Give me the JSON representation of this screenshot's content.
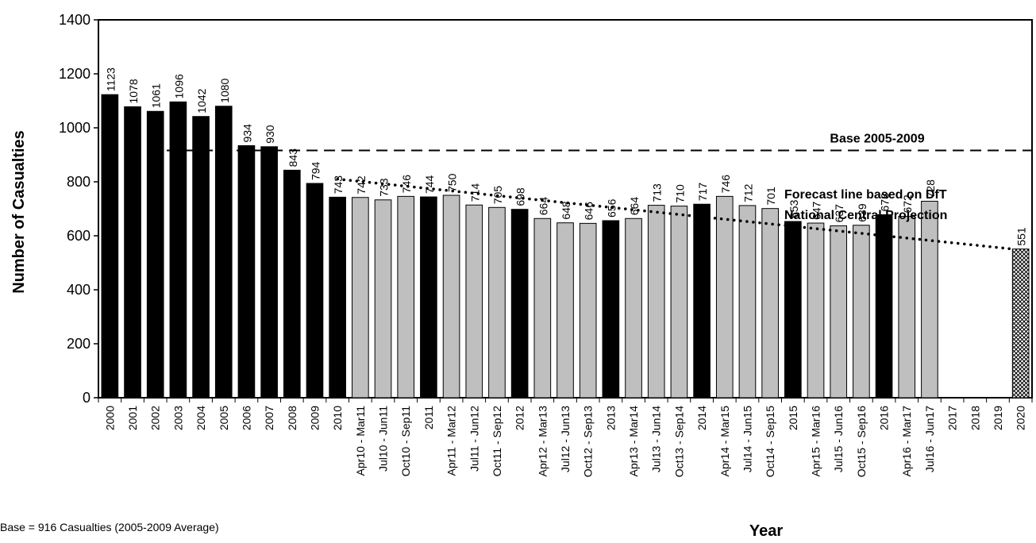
{
  "chart_data": {
    "type": "bar",
    "xlabel": "Year",
    "ylabel": "Number of Casualties",
    "ylim": [
      0,
      1400
    ],
    "yticks": [
      0,
      200,
      400,
      600,
      800,
      1000,
      1200,
      1400
    ],
    "grid": false,
    "categories": [
      "2000",
      "2001",
      "2002",
      "2003",
      "2004",
      "2005",
      "2006",
      "2007",
      "2008",
      "2009",
      "2010",
      "Apr10 - Mar11",
      "Jul10 - Jun11",
      "Oct10 - Sep11",
      "2011",
      "Apr11 - Mar12",
      "Jul11 - Jun12",
      "Oct11 - Sep12",
      "2012",
      "Apr12 - Mar13",
      "Jul12 - Jun13",
      "Oct12 - Sep13",
      "2013",
      "Apr13 - Mar14",
      "Jul13 - Jun14",
      "Oct13 - Sep14",
      "2014",
      "Apr14 - Mar15",
      "Jul14 - Jun15",
      "Oct14 - Sep15",
      "2015",
      "Apr15 - Mar16",
      "Jul15 - Jun16",
      "Oct15 - Sep16",
      "2016",
      "Apr16 - Mar17",
      "Jul16 - Jun17",
      "2017",
      "2018",
      "2019",
      "2020"
    ],
    "values": [
      1123,
      1078,
      1061,
      1096,
      1042,
      1080,
      934,
      930,
      843,
      794,
      743,
      742,
      733,
      746,
      744,
      750,
      714,
      705,
      698,
      664,
      648,
      646,
      656,
      664,
      713,
      710,
      717,
      746,
      712,
      701,
      653,
      647,
      637,
      639,
      678,
      672,
      728,
      null,
      null,
      null,
      551
    ],
    "value_labels": [
      "1123",
      "1078",
      "1061",
      "1096",
      "1042",
      "1080",
      "934",
      "930",
      "843",
      "794",
      "743",
      "742",
      "733",
      "746",
      "744",
      "750",
      "714",
      "705",
      "698",
      "664",
      "648",
      "646",
      "656",
      "664",
      "713",
      "710",
      "717",
      "746",
      "712",
      "701",
      "653",
      "647",
      "637",
      "639",
      "678",
      "672",
      "728",
      "",
      "",
      "",
      "551"
    ],
    "bar_kinds": [
      "annual",
      "annual",
      "annual",
      "annual",
      "annual",
      "annual",
      "annual",
      "annual",
      "annual",
      "annual",
      "annual",
      "rolling",
      "rolling",
      "rolling",
      "annual",
      "rolling",
      "rolling",
      "rolling",
      "annual",
      "rolling",
      "rolling",
      "rolling",
      "annual",
      "rolling",
      "rolling",
      "rolling",
      "annual",
      "rolling",
      "rolling",
      "rolling",
      "annual",
      "rolling",
      "rolling",
      "rolling",
      "annual",
      "rolling",
      "rolling",
      "none",
      "none",
      "none",
      "target"
    ],
    "colors": {
      "annual": "#000000",
      "rolling": "#bfbfbf",
      "target": "#ffffff"
    },
    "base_line": {
      "value": 916,
      "label": "Base 2005-2009"
    },
    "forecast_line": {
      "label_line1": "Forecast line based on DfT",
      "label_line2": "National Central Projection",
      "from_category": 10,
      "from_value": 810,
      "to_category": 40,
      "to_value": 551
    }
  },
  "footnote": "Base = 916 Casualties (2005-2009 Average)"
}
